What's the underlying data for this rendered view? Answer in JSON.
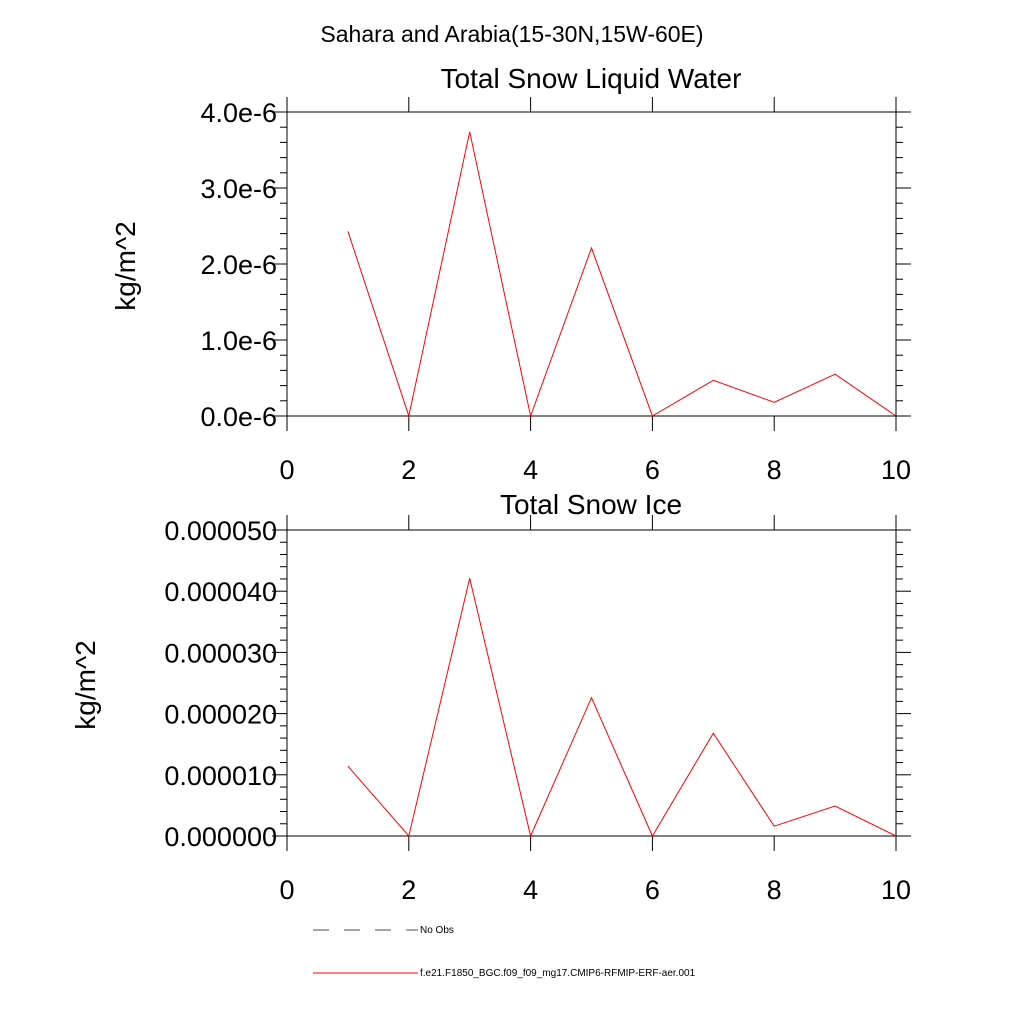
{
  "figure_title": "Sahara and Arabia(15-30N,15W-60E)",
  "legend": {
    "entries": [
      {
        "label": "No Obs",
        "style": "dashed",
        "color": "#4a4a6a"
      },
      {
        "label": "f.e21.F1850_BGC.f09_f09_mg17.CMIP6-RFMIP-ERF-aer.001",
        "style": "solid",
        "color": "#ff0000"
      }
    ]
  },
  "chart_data": [
    {
      "type": "line",
      "title": "Total Snow Liquid Water",
      "xlabel": "",
      "ylabel": "kg/m^2",
      "xlim": [
        0,
        10
      ],
      "ylim": [
        0,
        4e-06
      ],
      "xticks": [
        0,
        2,
        4,
        6,
        8,
        10
      ],
      "xtick_labels": [
        "0",
        "2",
        "4",
        "6",
        "8",
        "10"
      ],
      "yticks": [
        0,
        1e-06,
        2e-06,
        3e-06,
        4e-06
      ],
      "ytick_labels": [
        "0.0e-6",
        "1.0e-6",
        "2.0e-6",
        "3.0e-6",
        "4.0e-6"
      ],
      "grid": false,
      "series": [
        {
          "color": "#ff0000",
          "x": [
            1,
            2,
            3,
            4,
            5,
            6,
            7,
            8,
            9,
            10
          ],
          "y": [
            2.43e-06,
            0.0,
            3.74e-06,
            0.0,
            2.21e-06,
            0.0,
            4.7e-07,
            1.8e-07,
            5.5e-07,
            0.0
          ]
        }
      ]
    },
    {
      "type": "line",
      "title": "Total Snow Ice",
      "xlabel": "",
      "ylabel": "kg/m^2",
      "xlim": [
        0,
        10
      ],
      "ylim": [
        0,
        5e-05
      ],
      "xticks": [
        0,
        2,
        4,
        6,
        8,
        10
      ],
      "xtick_labels": [
        "0",
        "2",
        "4",
        "6",
        "8",
        "10"
      ],
      "yticks": [
        0,
        1e-05,
        2e-05,
        3e-05,
        4e-05,
        5e-05
      ],
      "ytick_labels": [
        "0.000000",
        "0.000010",
        "0.000020",
        "0.000030",
        "0.000040",
        "0.000050"
      ],
      "grid": false,
      "series": [
        {
          "color": "#ff0000",
          "x": [
            1,
            2,
            3,
            4,
            5,
            6,
            7,
            8,
            9,
            10
          ],
          "y": [
            1.14e-05,
            0.0,
            4.21e-05,
            0.0,
            2.26e-05,
            0.0,
            1.68e-05,
            1.6e-06,
            4.9e-06,
            0.0
          ]
        }
      ]
    }
  ]
}
